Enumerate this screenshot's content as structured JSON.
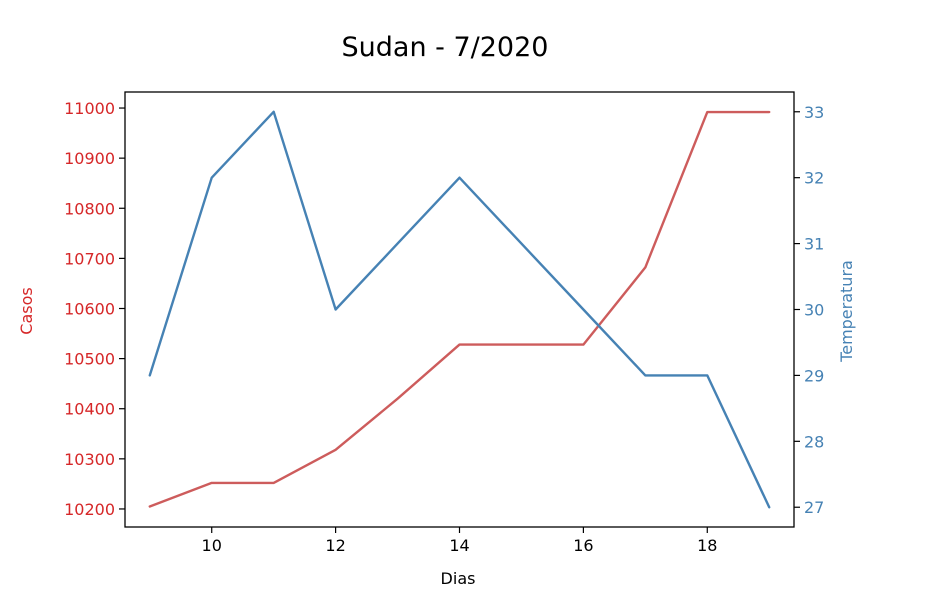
{
  "chart_data": {
    "type": "line",
    "title": "Sudan - 7/2020",
    "xlabel": "Dias",
    "ylabel_left": "Casos",
    "ylabel_right": "Temperatura",
    "x": [
      9,
      10,
      11,
      12,
      13,
      14,
      15,
      16,
      17,
      18,
      19
    ],
    "x_ticks": [
      10,
      12,
      14,
      16,
      18
    ],
    "xlim": [
      8.6,
      19.4
    ],
    "left_axis": {
      "ticks": [
        10200,
        10300,
        10400,
        10500,
        10600,
        10700,
        10800,
        10900,
        11000
      ],
      "ylim": [
        10164,
        11032
      ],
      "color": "#d62728"
    },
    "right_axis": {
      "ticks": [
        27,
        28,
        29,
        30,
        31,
        32,
        33
      ],
      "ylim": [
        26.7,
        33.3
      ],
      "color": "#4682b4"
    },
    "series": [
      {
        "name": "Casos",
        "axis": "left",
        "color": "#cd5c5c",
        "values": [
          10205,
          10252,
          10252,
          10318,
          10420,
          10528,
          10528,
          10528,
          10682,
          10992,
          10992
        ]
      },
      {
        "name": "Temperatura",
        "axis": "right",
        "color": "#4682b4",
        "values": [
          29,
          32,
          33,
          30,
          31,
          32,
          31,
          30,
          29,
          29,
          27
        ]
      }
    ],
    "grid": false,
    "legend": "none"
  }
}
